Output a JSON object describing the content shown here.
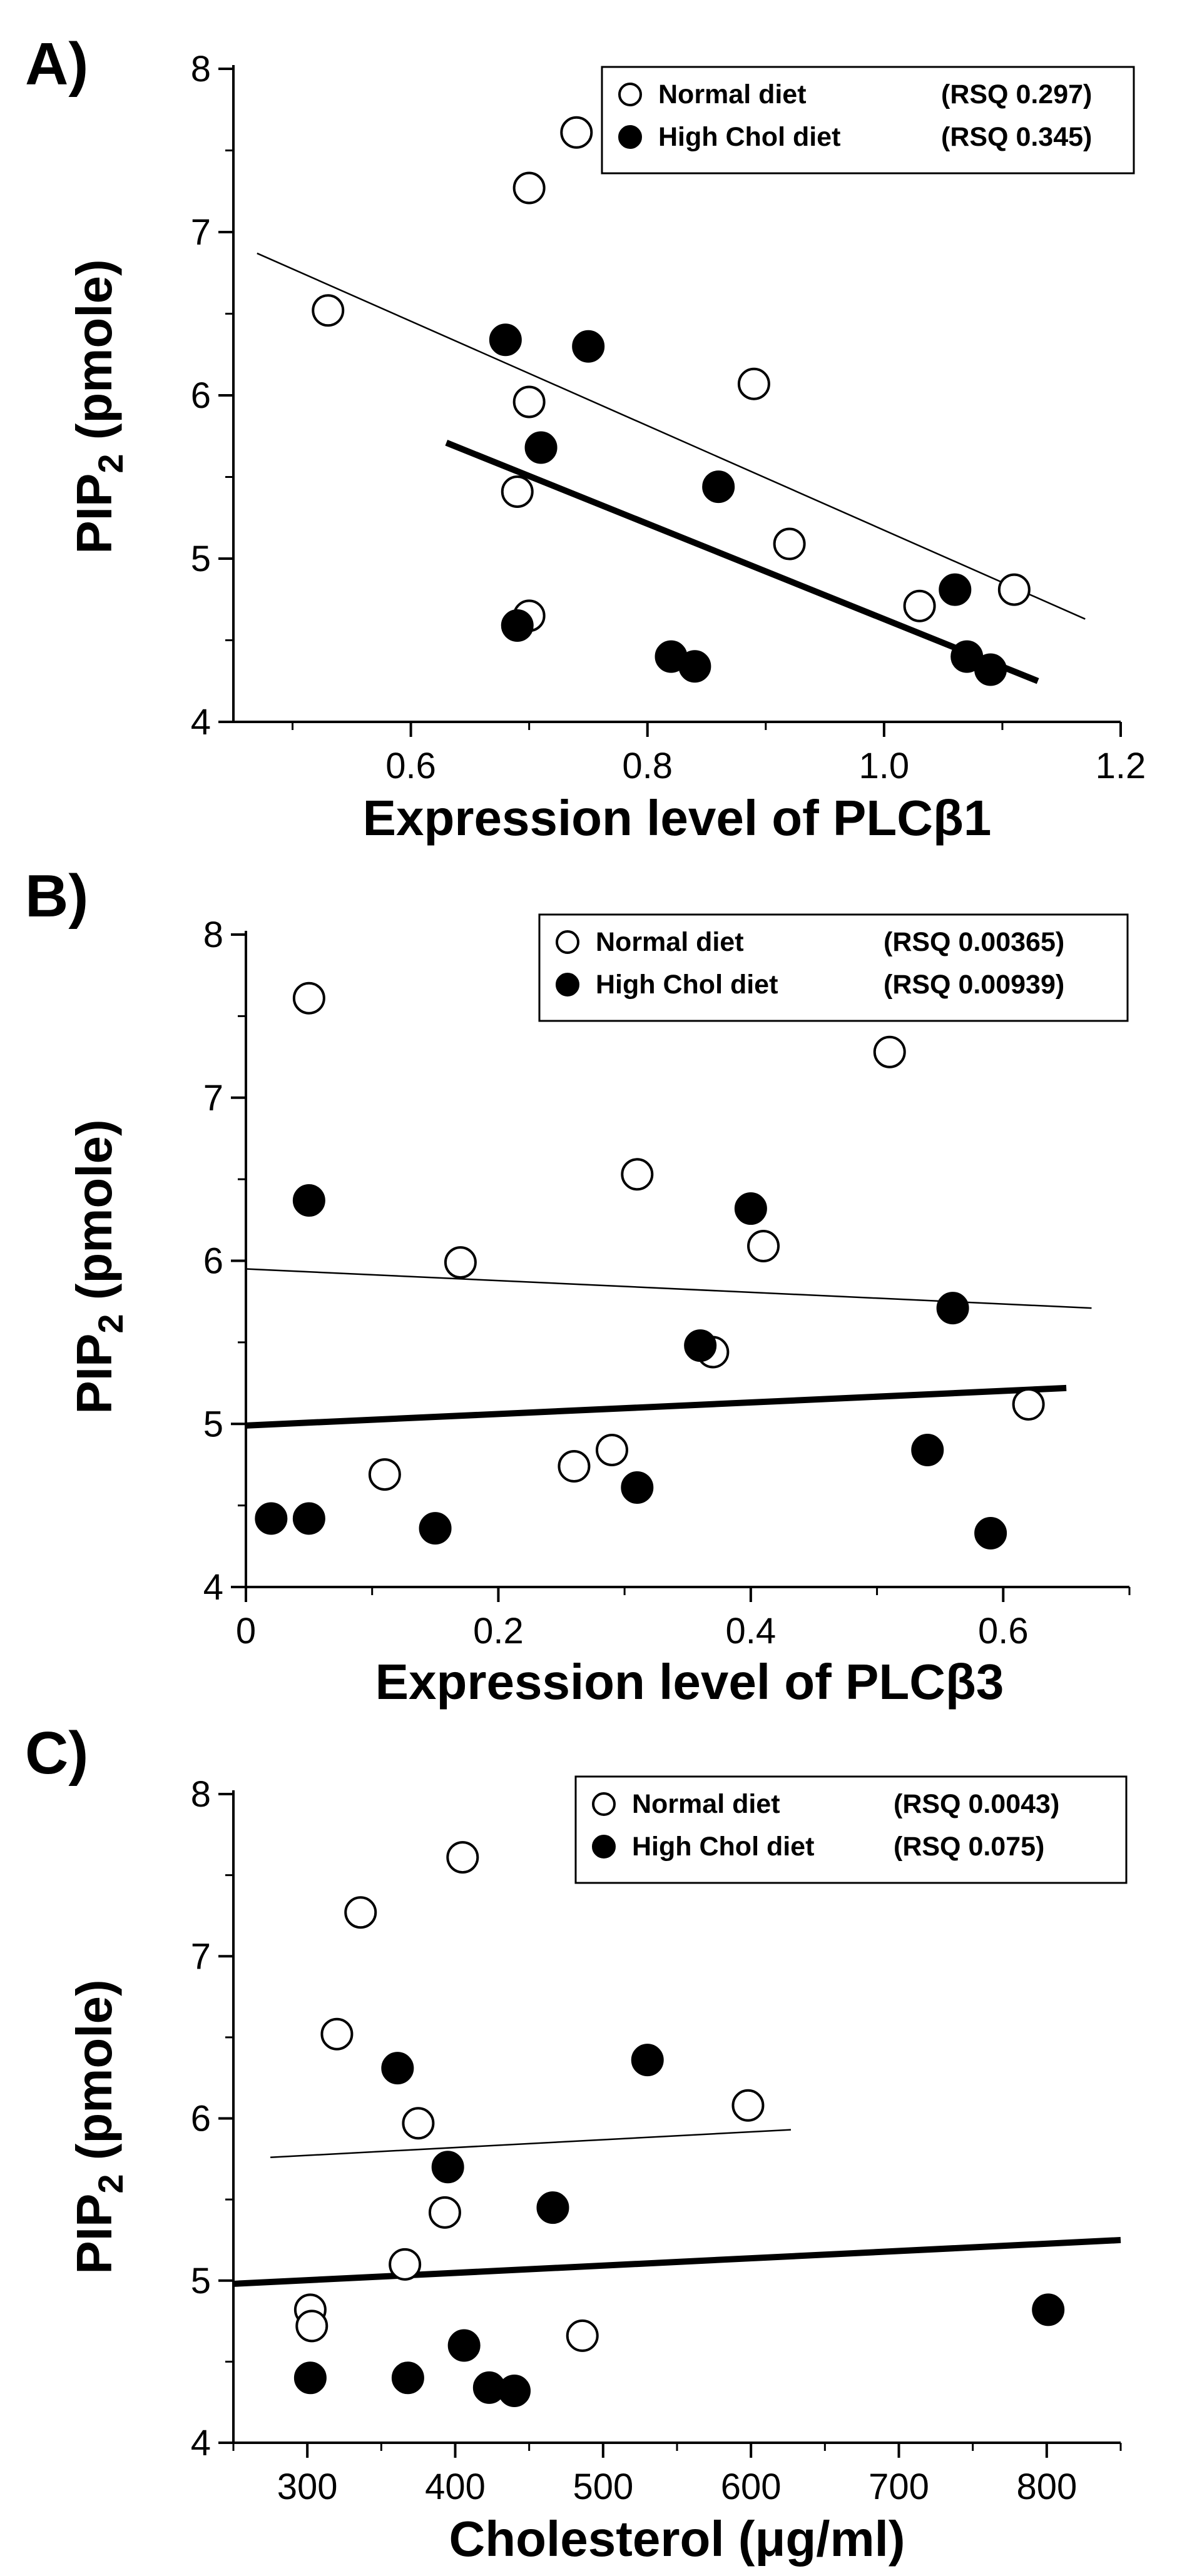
{
  "chart_data": [
    {
      "type": "scatter",
      "panel_label": "A)",
      "xlabel": "Expression level of PLCβ1",
      "ylabel_main": "PIP",
      "ylabel_sub": "2",
      "ylabel_rest": " (pmole)",
      "xlim": [
        0.45,
        1.2
      ],
      "ylim": [
        4,
        8
      ],
      "x_ticks": [
        0.6,
        0.8,
        1.0,
        1.2
      ],
      "x_tick_labels": [
        "0.6",
        "0.8",
        "1.0",
        "1.2"
      ],
      "y_ticks": [
        4,
        5,
        6,
        7,
        8
      ],
      "y_tick_labels": [
        "4",
        "5",
        "6",
        "7",
        "8"
      ],
      "legend_position": "top-right",
      "series": [
        {
          "name": "Normal diet",
          "rsq_label": "(RSQ 0.297)",
          "marker": "open-circle",
          "points": [
            [
              0.53,
              6.52
            ],
            [
              0.74,
              7.61
            ],
            [
              0.7,
              7.27
            ],
            [
              0.7,
              5.96
            ],
            [
              0.69,
              5.41
            ],
            [
              0.7,
              4.65
            ],
            [
              0.89,
              6.07
            ],
            [
              0.92,
              5.09
            ],
            [
              1.03,
              4.71
            ],
            [
              1.11,
              4.81
            ]
          ],
          "fit": {
            "x": [
              0.47,
              1.17
            ],
            "y": [
              6.87,
              4.63
            ]
          }
        },
        {
          "name": "High Chol diet",
          "rsq_label": "(RSQ 0.345)",
          "marker": "filled-circle",
          "points": [
            [
              0.68,
              6.34
            ],
            [
              0.75,
              6.3
            ],
            [
              0.71,
              5.68
            ],
            [
              0.86,
              5.44
            ],
            [
              0.69,
              4.59
            ],
            [
              0.82,
              4.4
            ],
            [
              0.84,
              4.34
            ],
            [
              1.06,
              4.81
            ],
            [
              1.07,
              4.4
            ],
            [
              1.09,
              4.32
            ]
          ],
          "fit": {
            "x": [
              0.63,
              1.13
            ],
            "y": [
              5.71,
              4.25
            ]
          }
        }
      ]
    },
    {
      "type": "scatter",
      "panel_label": "B)",
      "xlabel": "Expression level of PLCβ3",
      "ylabel_main": "PIP",
      "ylabel_sub": "2",
      "ylabel_rest": " (pmole)",
      "xlim": [
        0,
        0.7
      ],
      "ylim": [
        4,
        8
      ],
      "x_ticks": [
        0,
        0.2,
        0.4,
        0.6
      ],
      "x_tick_labels": [
        "0",
        "0.2",
        "0.4",
        "0.6"
      ],
      "y_ticks": [
        4,
        5,
        6,
        7,
        8
      ],
      "y_tick_labels": [
        "4",
        "5",
        "6",
        "7",
        "8"
      ],
      "legend_position": "top-right",
      "series": [
        {
          "name": "Normal diet",
          "rsq_label": "(RSQ 0.00365)",
          "marker": "open-circle",
          "points": [
            [
              0.05,
              7.61
            ],
            [
              0.51,
              7.28
            ],
            [
              0.31,
              6.53
            ],
            [
              0.41,
              6.09
            ],
            [
              0.17,
              5.99
            ],
            [
              0.37,
              5.44
            ],
            [
              0.62,
              5.12
            ],
            [
              0.29,
              4.84
            ],
            [
              0.26,
              4.74
            ],
            [
              0.11,
              4.69
            ]
          ],
          "fit": {
            "x": [
              0,
              0.67
            ],
            "y": [
              5.95,
              5.71
            ]
          }
        },
        {
          "name": "High Chol diet",
          "rsq_label": "(RSQ 0.00939)",
          "marker": "filled-circle",
          "points": [
            [
              0.05,
              6.37
            ],
            [
              0.4,
              6.32
            ],
            [
              0.56,
              5.71
            ],
            [
              0.36,
              5.48
            ],
            [
              0.54,
              4.84
            ],
            [
              0.31,
              4.61
            ],
            [
              0.02,
              4.42
            ],
            [
              0.05,
              4.42
            ],
            [
              0.15,
              4.36
            ],
            [
              0.59,
              4.33
            ]
          ],
          "fit": {
            "x": [
              0,
              0.65
            ],
            "y": [
              4.99,
              5.22
            ]
          }
        }
      ]
    },
    {
      "type": "scatter",
      "panel_label": "C)",
      "xlabel": "Cholesterol (μg/ml)",
      "ylabel_main": "PIP",
      "ylabel_sub": "2",
      "ylabel_rest": " (pmole)",
      "xlim": [
        250,
        850
      ],
      "ylim": [
        4,
        8
      ],
      "x_ticks": [
        300,
        400,
        500,
        600,
        700,
        800
      ],
      "x_tick_labels": [
        "300",
        "400",
        "500",
        "600",
        "700",
        "800"
      ],
      "y_ticks": [
        4,
        5,
        6,
        7,
        8
      ],
      "y_tick_labels": [
        "4",
        "5",
        "6",
        "7",
        "8"
      ],
      "legend_position": "top-right",
      "series": [
        {
          "name": "Normal diet",
          "rsq_label": "(RSQ 0.0043)",
          "marker": "open-circle",
          "points": [
            [
              405,
              7.61
            ],
            [
              336,
              7.27
            ],
            [
              320,
              6.52
            ],
            [
              598,
              6.08
            ],
            [
              375,
              5.97
            ],
            [
              393,
              5.42
            ],
            [
              366,
              5.1
            ],
            [
              302,
              4.82
            ],
            [
              303,
              4.72
            ],
            [
              486,
              4.66
            ]
          ],
          "fit": {
            "x": [
              275,
              627
            ],
            "y": [
              5.76,
              5.93
            ]
          }
        },
        {
          "name": "High Chol diet",
          "rsq_label": "(RSQ 0.075)",
          "marker": "filled-circle",
          "points": [
            [
              530,
              6.36
            ],
            [
              361,
              6.31
            ],
            [
              395,
              5.7
            ],
            [
              466,
              5.45
            ],
            [
              801,
              4.82
            ],
            [
              406,
              4.6
            ],
            [
              302,
              4.4
            ],
            [
              368,
              4.4
            ],
            [
              423,
              4.34
            ],
            [
              440,
              4.32
            ]
          ],
          "fit": {
            "x": [
              250,
              850
            ],
            "y": [
              4.98,
              5.25
            ]
          }
        }
      ]
    }
  ]
}
